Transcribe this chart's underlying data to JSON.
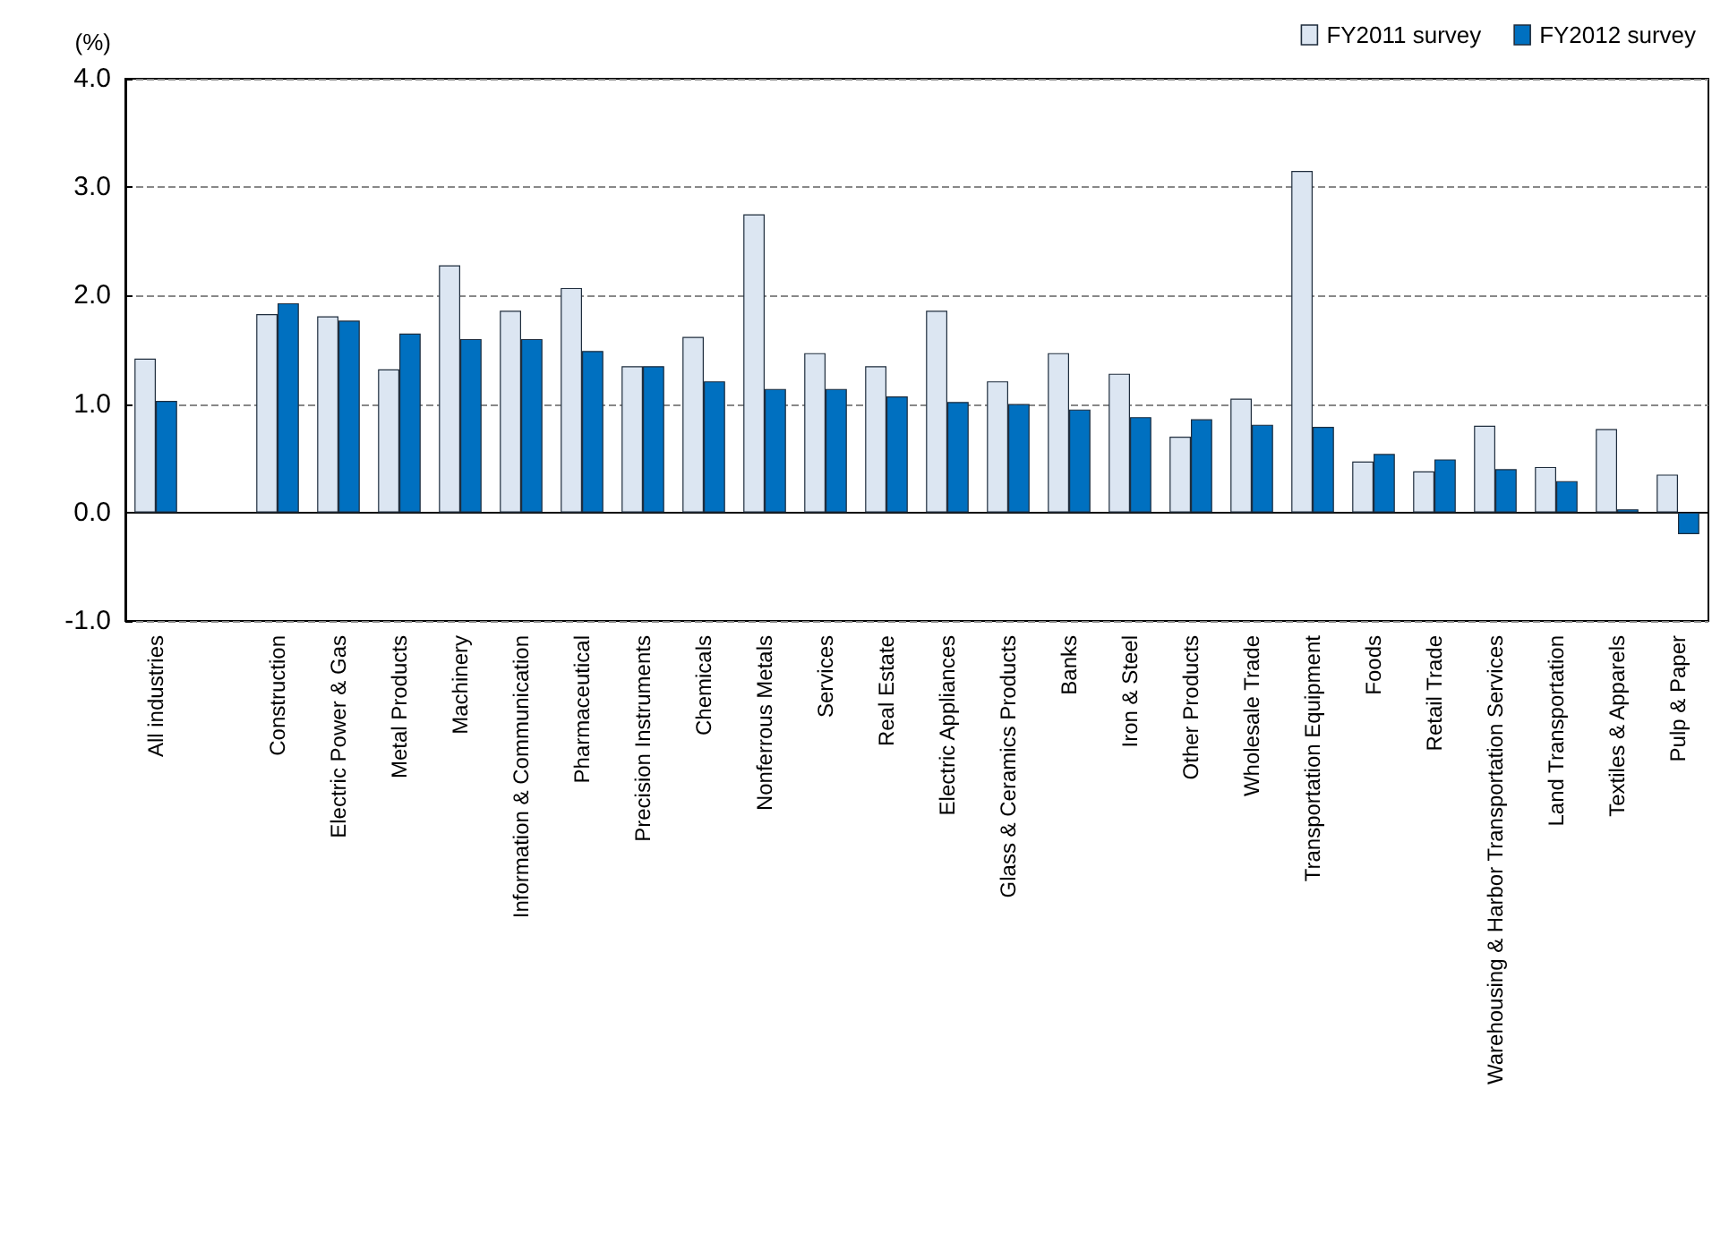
{
  "chart_data": {
    "type": "bar",
    "ylabel": "(%)",
    "categories": [
      "All industries",
      null,
      "Construction",
      "Electric Power & Gas",
      "Metal Products",
      "Machinery",
      "Information & Communication",
      "Pharmaceutical",
      "Precision Instruments",
      "Chemicals",
      "Nonferrous Metals",
      "Services",
      "Real Estate",
      "Electric Appliances",
      "Glass & Ceramics Products",
      "Banks",
      "Iron & Steel",
      "Other Products",
      "Wholesale Trade",
      "Transportation Equipment",
      "Foods",
      "Retail Trade",
      "Warehousing & Harbor Transportation Services",
      "Land Transportation",
      "Textiles & Apparels",
      "Pulp & Paper"
    ],
    "series": [
      {
        "name": "FY2011 survey",
        "color": "#dce6f2",
        "values": [
          1.42,
          null,
          1.83,
          1.81,
          1.32,
          2.28,
          1.86,
          2.07,
          1.35,
          1.62,
          2.75,
          1.47,
          1.35,
          1.86,
          1.21,
          1.47,
          1.28,
          0.7,
          1.05,
          3.15,
          0.47,
          0.38,
          0.8,
          0.42,
          0.77,
          0.35
        ]
      },
      {
        "name": "FY2012 survey",
        "color": "#0070c0",
        "values": [
          1.03,
          null,
          1.93,
          1.77,
          1.65,
          1.6,
          1.6,
          1.49,
          1.35,
          1.21,
          1.14,
          1.14,
          1.07,
          1.02,
          1.0,
          0.95,
          0.88,
          0.86,
          0.81,
          0.79,
          0.54,
          0.49,
          0.4,
          0.29,
          0.03,
          -0.2
        ]
      }
    ],
    "ylim": [
      -1,
      4
    ],
    "yticks": [
      {
        "value": -1,
        "label": "-1.0"
      },
      {
        "value": 0,
        "label": "0.0"
      },
      {
        "value": 1,
        "label": "1.0"
      },
      {
        "value": 2,
        "label": "2.0"
      },
      {
        "value": 3,
        "label": "3.0"
      },
      {
        "value": 4,
        "label": "4.0"
      }
    ],
    "grid": "y",
    "legend": "top right"
  }
}
